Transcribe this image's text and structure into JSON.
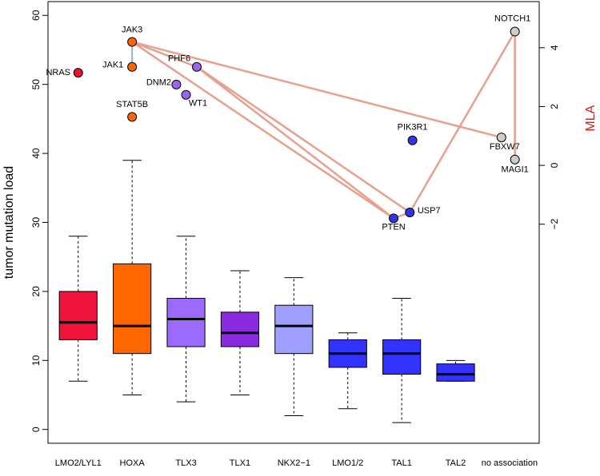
{
  "chart_data": {
    "type": "box",
    "ylabel": "tumor mutation load",
    "y2label": "MLA",
    "ylim": [
      -2,
      62
    ],
    "yticks": [
      0,
      10,
      20,
      30,
      40,
      50,
      60
    ],
    "y2lim": [
      -9.45,
      5.57
    ],
    "y2ticks": [
      -2,
      0,
      2,
      4
    ],
    "colors": {
      "axis": "#000000",
      "edge": "#e8a08e",
      "blue_edge": "#8fb4d9",
      "y2label": "#cc2222"
    },
    "boxes": [
      {
        "label": "LMO2/LYL1",
        "min": 7,
        "q1": 13,
        "median": 15.5,
        "q3": 20,
        "max": 28,
        "color": "#f0143c"
      },
      {
        "label": "HOXA",
        "min": 5,
        "q1": 11,
        "median": 15,
        "q3": 24,
        "max": 39,
        "color": "#ff6600"
      },
      {
        "label": "TLX3",
        "min": 4,
        "q1": 12,
        "median": 16,
        "q3": 19,
        "max": 28,
        "color": "#9b6bff"
      },
      {
        "label": "TLX1",
        "min": 5,
        "q1": 12,
        "median": 14,
        "q3": 17,
        "max": 23,
        "color": "#8a2be2"
      },
      {
        "label": "NKX2−1",
        "min": 2,
        "q1": 11,
        "median": 15,
        "q3": 18,
        "max": 22,
        "color": "#9f9fff"
      },
      {
        "label": "LMO1/2",
        "min": 3,
        "q1": 9,
        "median": 11,
        "q3": 13,
        "max": 14,
        "color": "#3333ff"
      },
      {
        "label": "TAL1",
        "min": 1,
        "q1": 8,
        "median": 11,
        "q3": 13,
        "max": 19,
        "color": "#3333ff"
      },
      {
        "label": "TAL2",
        "min": 7,
        "q1": 7,
        "median": 8,
        "q3": 9.5,
        "max": 10,
        "color": "#3333ff"
      },
      {
        "label": "no association"
      }
    ],
    "genes": [
      {
        "name": "NRAS",
        "group": 1,
        "offset": 0,
        "mla": 3.15,
        "color": "#ee1133"
      },
      {
        "name": "JAK3",
        "group": 2,
        "offset": 0,
        "mla": 4.2,
        "color": "#ff6600"
      },
      {
        "name": "JAK1",
        "group": 2,
        "offset": 0,
        "mla": 3.35,
        "color": "#ff6600"
      },
      {
        "name": "STAT5B",
        "group": 2,
        "offset": 0,
        "mla": 1.65,
        "color": "#ff6600"
      },
      {
        "name": "PHF6",
        "group": 3,
        "offset": 0.2,
        "mla": 3.35,
        "color": "#9966ee"
      },
      {
        "name": "DNM2",
        "group": 3,
        "offset": -0.18,
        "mla": 2.75,
        "color": "#9966ee"
      },
      {
        "name": "WT1",
        "group": 3,
        "offset": 0,
        "mla": 2.4,
        "color": "#9966ee"
      },
      {
        "name": "PIK3R1",
        "group": 7,
        "offset": 0.2,
        "mla": 0.85,
        "color": "#3333ee"
      },
      {
        "name": "PTEN",
        "group": 7,
        "offset": -0.15,
        "mla": -1.8,
        "color": "#3333ee"
      },
      {
        "name": "USP7",
        "group": 7,
        "offset": 0.15,
        "mla": -1.6,
        "color": "#3333ee"
      },
      {
        "name": "NOTCH1",
        "group": 9,
        "offset": 0.1,
        "mla": 4.55,
        "color": "#cccccc"
      },
      {
        "name": "FBXW7",
        "group": 9,
        "offset": -0.15,
        "mla": 0.95,
        "color": "#cccccc"
      },
      {
        "name": "MAGI1",
        "group": 9,
        "offset": 0.1,
        "mla": 0.2,
        "color": "#cccccc"
      }
    ],
    "edges": [
      [
        "JAK3",
        "PHF6"
      ],
      [
        "JAK3",
        "PTEN"
      ],
      [
        "JAK3",
        "FBXW7"
      ],
      [
        "PHF6",
        "PTEN"
      ],
      [
        "PHF6",
        "USP7"
      ],
      [
        "PTEN",
        "USP7"
      ],
      [
        "USP7",
        "NOTCH1"
      ],
      [
        "NOTCH1",
        "MAGI1"
      ]
    ],
    "blue_edges": [
      [
        "JAK3",
        "JAK1"
      ]
    ]
  }
}
